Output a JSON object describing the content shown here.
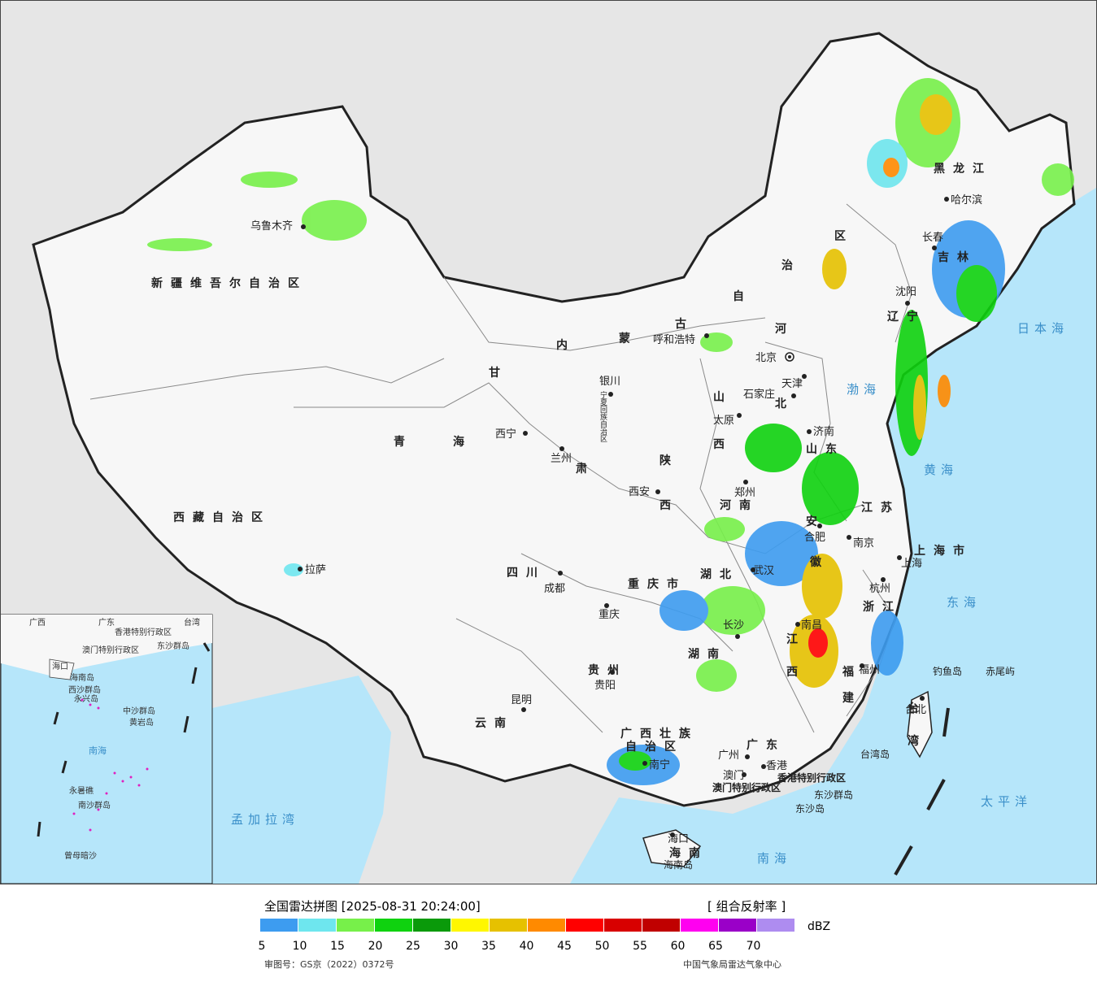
{
  "title": "全国雷达拼图 [2025-08-31 20:24:00]",
  "product": "[ 组合反射率 ]",
  "unit": "dBZ",
  "legend": {
    "colors": [
      "#3d9cf0",
      "#6ee6ee",
      "#77f04a",
      "#0fd20f",
      "#0a9a0a",
      "#fff700",
      "#e6c100",
      "#ff8a00",
      "#ff0000",
      "#d80000",
      "#c00000",
      "#ff00f0",
      "#9a00c8",
      "#ae8cf0"
    ],
    "ticks": [
      "5",
      "10",
      "15",
      "20",
      "25",
      "30",
      "35",
      "40",
      "45",
      "50",
      "55",
      "60",
      "65",
      "70"
    ]
  },
  "footer": {
    "approval": "审图号：GS京（2022）0372号",
    "source": "中国气象局雷达气象中心"
  },
  "provinces": {
    "xinjiang": "新疆维吾尔自治区",
    "xizang": "西藏自治区",
    "qinghai_1": "青",
    "qinghai_2": "海",
    "gansu_1": "甘",
    "gansu_2": "肃",
    "neimenggu_1": "内",
    "neimenggu_2": "蒙",
    "neimenggu_3": "古",
    "neimenggu_4": "自",
    "neimenggu_5": "治",
    "neimenggu_6": "区",
    "heilongjiang": "黑龙江",
    "jilin": "吉林",
    "liaoning": "辽宁",
    "hebei_1": "河",
    "hebei_2": "北",
    "shanxi_1": "山",
    "shanxi_2": "西",
    "shandong": "山东",
    "henan": "河南",
    "shaanxi_1": "陕",
    "shaanxi_2": "西",
    "ningxia": "宁夏回族自治区",
    "sichuan": "四川",
    "chongqing": "重庆市",
    "hubei": "湖北",
    "hunan": "湖南",
    "jiangxi_1": "江",
    "jiangxi_2": "西",
    "anhui_1": "安",
    "anhui_2": "徽",
    "jiangsu": "江苏",
    "shanghai": "上海市",
    "zhejiang": "浙江",
    "fujian_1": "福",
    "fujian_2": "建",
    "guizhou": "贵州",
    "yunnan": "云南",
    "guangxi_1": "广西壮族",
    "guangxi_2": "自治区",
    "guangdong": "广东",
    "hainan": "海南",
    "taiwan_1": "台",
    "taiwan_2": "湾",
    "hk": "香港特别行政区",
    "macau": "澳门特别行政区",
    "tianjin": "天津"
  },
  "cities": {
    "urumqi": "乌鲁木齐",
    "lhasa": "拉萨",
    "xining": "西宁",
    "lanzhou": "兰州",
    "yinchuan": "银川",
    "hohhot": "呼和浩特",
    "beijing": "北京",
    "tianjin": "天津",
    "shijiazhuang": "石家庄",
    "taiyuan": "太原",
    "jinan": "济南",
    "zhengzhou": "郑州",
    "xian": "西安",
    "chengdu": "成都",
    "chongqing": "重庆",
    "wuhan": "武汉",
    "hefei": "合肥",
    "nanjing": "南京",
    "shanghai": "上海",
    "hangzhou": "杭州",
    "nanchang": "南昌",
    "changsha": "长沙",
    "guiyang": "贵阳",
    "kunming": "昆明",
    "nanning": "南宁",
    "guangzhou": "广州",
    "fuzhou": "福州",
    "taibei": "台北",
    "haikou": "海口",
    "aomen": "澳门",
    "xianggang": "香港",
    "shenyang": "沈阳",
    "changchun": "长春",
    "harbin": "哈尔滨"
  },
  "islands": {
    "diaoyu": "钓鱼岛",
    "chiwei": "赤尾屿",
    "dongsha_1": "东沙群岛",
    "dongsha_2": "东沙岛",
    "taiwan_island": "台湾岛",
    "hainan_island": "海南岛"
  },
  "seas": {
    "bohai": "渤海",
    "huanghai": "黄海",
    "donghai": "东海",
    "nanhai": "南海",
    "taipingyang": "太平洋",
    "ribenhai": "日本海",
    "mengjialawan": "孟加拉湾"
  },
  "inset": {
    "guangdong": "广东",
    "guangxi": "广西",
    "taiwan": "台湾",
    "hk": "香港特别行政区",
    "macau": "澳门特别行政区",
    "dongsha": "东沙群岛",
    "haikou": "海口",
    "hainan_dao": "海南岛",
    "xisha": "西沙群岛",
    "yongxing": "永兴岛",
    "zhongsha": "中沙群岛",
    "huangyan": "黄岩岛",
    "nansha": "南沙群岛",
    "yongshu": "永暑礁",
    "zengmu": "曾母暗沙",
    "nanhai": "南海"
  }
}
